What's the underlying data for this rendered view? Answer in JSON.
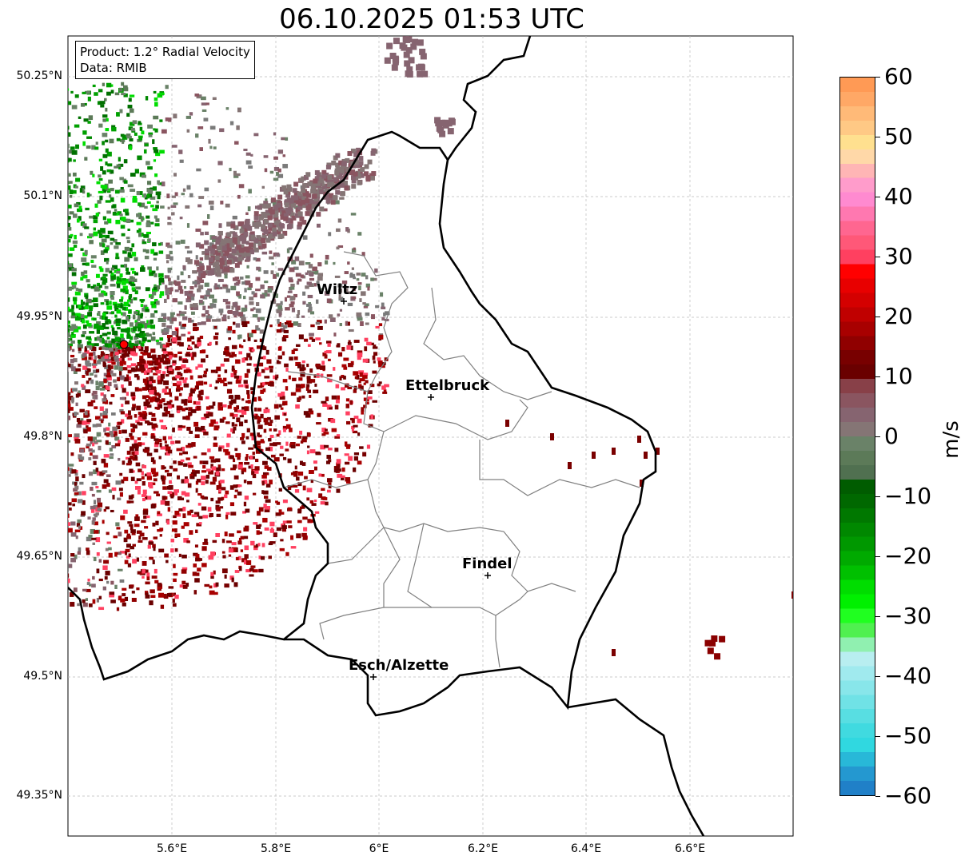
{
  "title": "06.10.2025 01:53 UTC",
  "info_box": {
    "product": "Product: 1.2° Radial Velocity",
    "data": "Data: RMIB"
  },
  "lat_ticks": [
    "50.25°N",
    "50.1°N",
    "49.95°N",
    "49.8°N",
    "49.65°N",
    "49.5°N",
    "49.35°N"
  ],
  "lon_ticks": [
    "5.6°E",
    "5.8°E",
    "6°E",
    "6.2°E",
    "6.4°E",
    "6.6°E"
  ],
  "cities": [
    "Wiltz",
    "Ettelbruck",
    "Findel",
    "Esch/Alzette"
  ],
  "colorbar": {
    "label": "m/s",
    "ticks": [
      "60",
      "50",
      "40",
      "30",
      "20",
      "10",
      "0",
      "−10",
      "−20",
      "−30",
      "−40",
      "−50",
      "−60"
    ],
    "range": [
      -60,
      60
    ]
  },
  "colors": {
    "border": "#000000",
    "communes": "#808080",
    "radar_site": "#ff0000"
  }
}
